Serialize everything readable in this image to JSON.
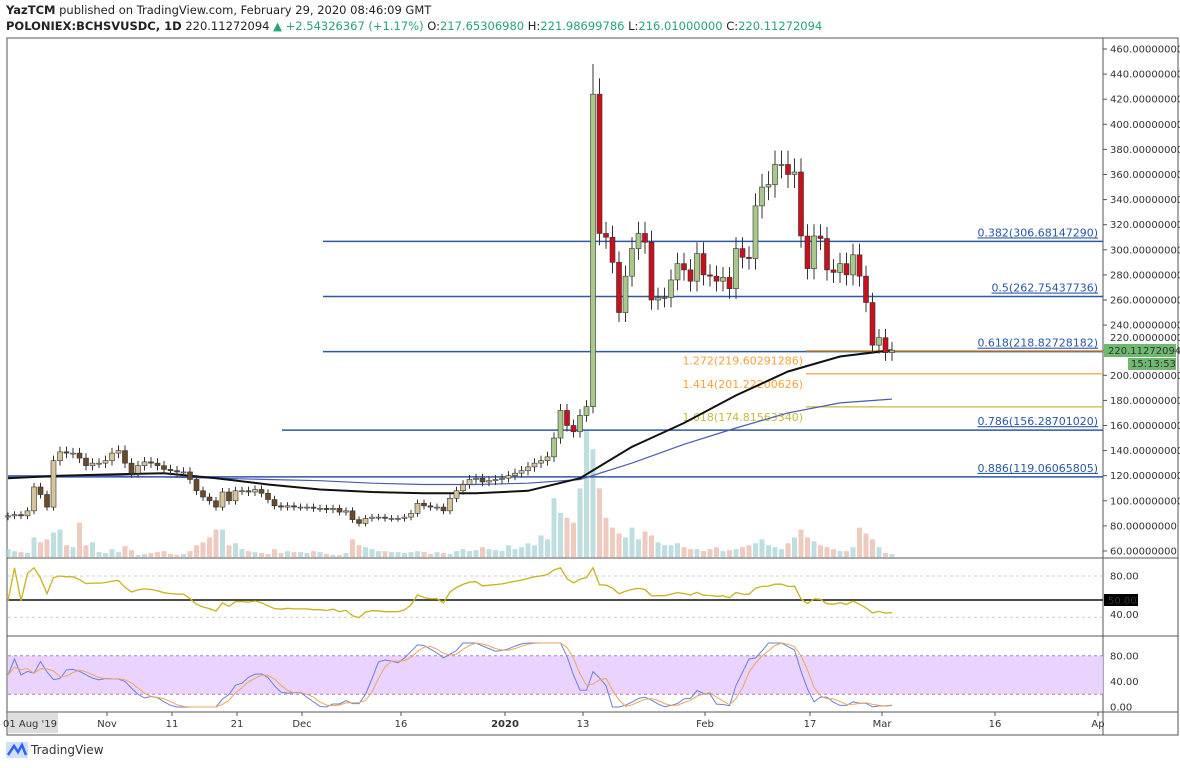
{
  "header": {
    "author": "YazTCM",
    "published": "published on TradingView.com, February 29, 2020 08:46:09 GMT",
    "symbol": "POLONIEX:BCHSVUSDC, 1D",
    "last": "220.11272094",
    "change": "+2.54326367 (+1.17%)",
    "o_label": "O:",
    "o": "217.65306980",
    "h_label": "H:",
    "h": "221.98699786",
    "l_label": "L:",
    "l": "216.01000000",
    "c_label": "C:",
    "c": "220.11272094",
    "up_color": "#27a17e"
  },
  "footer": {
    "brand": "TradingView",
    "brand_color": "#2962ff"
  },
  "chart_data": {
    "type": "candlestick",
    "interval": "1D",
    "price_axis_ticks": [
      "460.00000000",
      "440.00000000",
      "420.00000000",
      "400.00000000",
      "380.00000000",
      "360.00000000",
      "340.00000000",
      "320.00000000",
      "300.00000000",
      "280.00000000",
      "260.00000000",
      "240.00000000",
      "220.00000000",
      "200.00000000",
      "180.00000000",
      "160.00000000",
      "140.00000000",
      "120.00000000",
      "100.00000000",
      "80.00000000",
      "60.00000000"
    ],
    "ylim": [
      60,
      460
    ],
    "time_axis_ticks": [
      "01 Aug '19",
      "Nov",
      "11",
      "21",
      "Dec",
      "16",
      "2020",
      "13",
      "Feb",
      "17",
      "Mar",
      "16",
      "Ap"
    ],
    "last_price_label": "220.11272094",
    "countdown_label": "15:13:53",
    "closes": [
      88,
      89,
      88,
      92,
      111,
      105,
      95,
      132,
      139,
      138,
      138,
      134,
      128,
      130,
      130,
      132,
      138,
      140,
      130,
      122,
      128,
      131,
      130,
      128,
      125,
      124,
      123,
      123,
      117,
      108,
      103,
      100,
      95,
      107,
      100,
      108,
      108,
      107,
      109,
      106,
      101,
      96,
      95,
      96,
      95,
      95,
      95,
      94,
      94,
      93,
      94,
      91,
      92,
      85,
      82,
      86,
      87,
      87,
      86,
      86,
      86,
      87,
      90,
      98,
      96,
      95,
      95,
      92,
      102,
      108,
      113,
      117,
      118,
      115,
      116,
      117,
      118,
      120,
      122,
      124,
      127,
      130,
      132,
      135,
      150,
      172,
      160,
      155,
      168,
      175,
      424,
      313,
      310,
      290,
      250,
      279,
      301,
      313,
      306,
      260,
      262,
      262,
      276,
      289,
      284,
      275,
      297,
      280,
      279,
      275,
      278,
      269,
      301,
      294,
      293,
      335,
      350,
      352,
      368,
      368,
      360,
      362,
      311,
      285,
      311,
      309,
      284,
      282,
      289,
      280,
      296,
      279,
      258,
      224,
      230,
      218,
      220
    ],
    "spike_high": 448,
    "volume": [
      8,
      6,
      5,
      4,
      20,
      15,
      18,
      25,
      28,
      12,
      10,
      35,
      12,
      15,
      5,
      4,
      8,
      5,
      11,
      7,
      2,
      3,
      4,
      5,
      6,
      3,
      2,
      3,
      6,
      12,
      15,
      20,
      28,
      28,
      12,
      14,
      8,
      6,
      5,
      4,
      3,
      8,
      4,
      6,
      5,
      5,
      4,
      6,
      5,
      3,
      2,
      2,
      4,
      18,
      12,
      10,
      8,
      6,
      6,
      5,
      5,
      4,
      5,
      6,
      5,
      3,
      5,
      4,
      3,
      6,
      8,
      6,
      7,
      10,
      8,
      7,
      6,
      12,
      8,
      10,
      14,
      12,
      22,
      18,
      60,
      45,
      40,
      35,
      70,
      130,
      110,
      70,
      40,
      30,
      24,
      20,
      30,
      18,
      26,
      22,
      15,
      12,
      12,
      14,
      10,
      8,
      8,
      6,
      8,
      10,
      6,
      7,
      8,
      10,
      12,
      14,
      18,
      12,
      10,
      8,
      14,
      20,
      28,
      20,
      16,
      12,
      10,
      8,
      6,
      6,
      10,
      30,
      24,
      18,
      10,
      4,
      3
    ],
    "ma_black_samples": [
      118,
      120,
      121,
      122,
      118,
      113,
      109,
      107,
      106,
      106,
      108,
      118,
      143,
      162,
      184,
      203,
      215,
      220
    ],
    "ma_blue_samples": [
      120,
      120,
      120,
      119,
      118,
      117,
      116,
      114,
      113,
      113,
      114,
      117,
      130,
      145,
      158,
      170,
      178,
      181
    ],
    "fib_retracement": [
      {
        "label": "0.382(306.68147290)",
        "value": 306.6814729
      },
      {
        "label": "0.5(262.75437736)",
        "value": 262.75437736
      },
      {
        "label": "0.618(218.82728182)",
        "value": 218.82728182
      },
      {
        "label": "0.786(156.28701020)",
        "value": 156.2870102
      },
      {
        "label": "0.886(119.06065805)",
        "value": 119.06065805
      }
    ],
    "fib_extension": [
      {
        "label": "1.272(219.60291286)",
        "value": 219.60291286,
        "color": "#f7a23a"
      },
      {
        "label": "1.414(201.22200626)",
        "value": 201.22200626,
        "color": "#f7a23a"
      },
      {
        "label": "1.618(174.81563340)",
        "value": 174.8156334,
        "color": "#c9b83a"
      }
    ],
    "rsi": {
      "ticks": [
        "80.00",
        "40.00"
      ],
      "midline_label": "50.00",
      "color": "#c9b21a"
    },
    "stoch_rsi": {
      "ticks": [
        "80.00",
        "40.00",
        "0.00"
      ],
      "band": [
        20,
        80
      ],
      "band_color": "#e6ccff",
      "k_color": "#6b7fd6",
      "d_color": "#e9a75c"
    },
    "colors": {
      "up": "#a7c98a",
      "down": "#c8101e",
      "up_early": "#d6c59a",
      "down_early": "#6b4a2a",
      "fib_line": "#2b57a8"
    }
  }
}
